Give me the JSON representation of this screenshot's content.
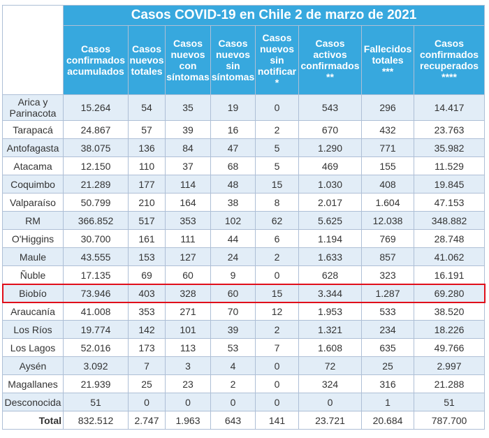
{
  "title": "Casos COVID-19 en Chile 2 de marzo de 2021",
  "headers": [
    [
      "Casos",
      "confirmados",
      "acumulados"
    ],
    [
      "Casos",
      "nuevos",
      "totales"
    ],
    [
      "Casos",
      "nuevos",
      "con",
      "síntomas"
    ],
    [
      "Casos",
      "nuevos",
      "sin",
      "síntomas"
    ],
    [
      "Casos",
      "nuevos",
      "sin",
      "notificar",
      "*"
    ],
    [
      "Casos",
      "activos",
      "confirmados",
      "**"
    ],
    [
      "Fallecidos",
      "totales",
      "***"
    ],
    [
      "Casos",
      "confirmados",
      "recuperados",
      "****"
    ]
  ],
  "rows": [
    {
      "region": "Arica y Parinacota",
      "values": [
        "15.264",
        "54",
        "35",
        "19",
        "0",
        "543",
        "296",
        "14.417"
      ]
    },
    {
      "region": "Tarapacá",
      "values": [
        "24.867",
        "57",
        "39",
        "16",
        "2",
        "670",
        "432",
        "23.763"
      ]
    },
    {
      "region": "Antofagasta",
      "values": [
        "38.075",
        "136",
        "84",
        "47",
        "5",
        "1.290",
        "771",
        "35.982"
      ]
    },
    {
      "region": "Atacama",
      "values": [
        "12.150",
        "110",
        "37",
        "68",
        "5",
        "469",
        "155",
        "11.529"
      ]
    },
    {
      "region": "Coquimbo",
      "values": [
        "21.289",
        "177",
        "114",
        "48",
        "15",
        "1.030",
        "408",
        "19.845"
      ]
    },
    {
      "region": "Valparaíso",
      "values": [
        "50.799",
        "210",
        "164",
        "38",
        "8",
        "2.017",
        "1.604",
        "47.153"
      ]
    },
    {
      "region": "RM",
      "values": [
        "366.852",
        "517",
        "353",
        "102",
        "62",
        "5.625",
        "12.038",
        "348.882"
      ]
    },
    {
      "region": "O'Higgins",
      "values": [
        "30.700",
        "161",
        "111",
        "44",
        "6",
        "1.194",
        "769",
        "28.748"
      ]
    },
    {
      "region": "Maule",
      "values": [
        "43.555",
        "153",
        "127",
        "24",
        "2",
        "1.633",
        "857",
        "41.062"
      ]
    },
    {
      "region": "Ñuble",
      "values": [
        "17.135",
        "69",
        "60",
        "9",
        "0",
        "628",
        "323",
        "16.191"
      ]
    },
    {
      "region": "Biobío",
      "values": [
        "73.946",
        "403",
        "328",
        "60",
        "15",
        "3.344",
        "1.287",
        "69.280"
      ]
    },
    {
      "region": "Araucanía",
      "values": [
        "41.008",
        "353",
        "271",
        "70",
        "12",
        "1.953",
        "533",
        "38.520"
      ]
    },
    {
      "region": "Los Ríos",
      "values": [
        "19.774",
        "142",
        "101",
        "39",
        "2",
        "1.321",
        "234",
        "18.226"
      ]
    },
    {
      "region": "Los Lagos",
      "values": [
        "52.016",
        "173",
        "113",
        "53",
        "7",
        "1.608",
        "635",
        "49.766"
      ]
    },
    {
      "region": "Aysén",
      "values": [
        "3.092",
        "7",
        "3",
        "4",
        "0",
        "72",
        "25",
        "2.997"
      ]
    },
    {
      "region": "Magallanes",
      "values": [
        "21.939",
        "25",
        "23",
        "2",
        "0",
        "324",
        "316",
        "21.288"
      ]
    },
    {
      "region": "Desconocida",
      "values": [
        "51",
        "0",
        "0",
        "0",
        "0",
        "0",
        "1",
        "51"
      ]
    }
  ],
  "total": {
    "label": "Total",
    "values": [
      "832.512",
      "2.747",
      "1.963",
      "643",
      "141",
      "23.721",
      "20.684",
      "787.700"
    ]
  },
  "colors": {
    "header_bg": "#37a8de",
    "alt_row_bg": "#e2edf7",
    "highlight_border": "#e00e1a"
  },
  "highlighted_region": "Biobío"
}
